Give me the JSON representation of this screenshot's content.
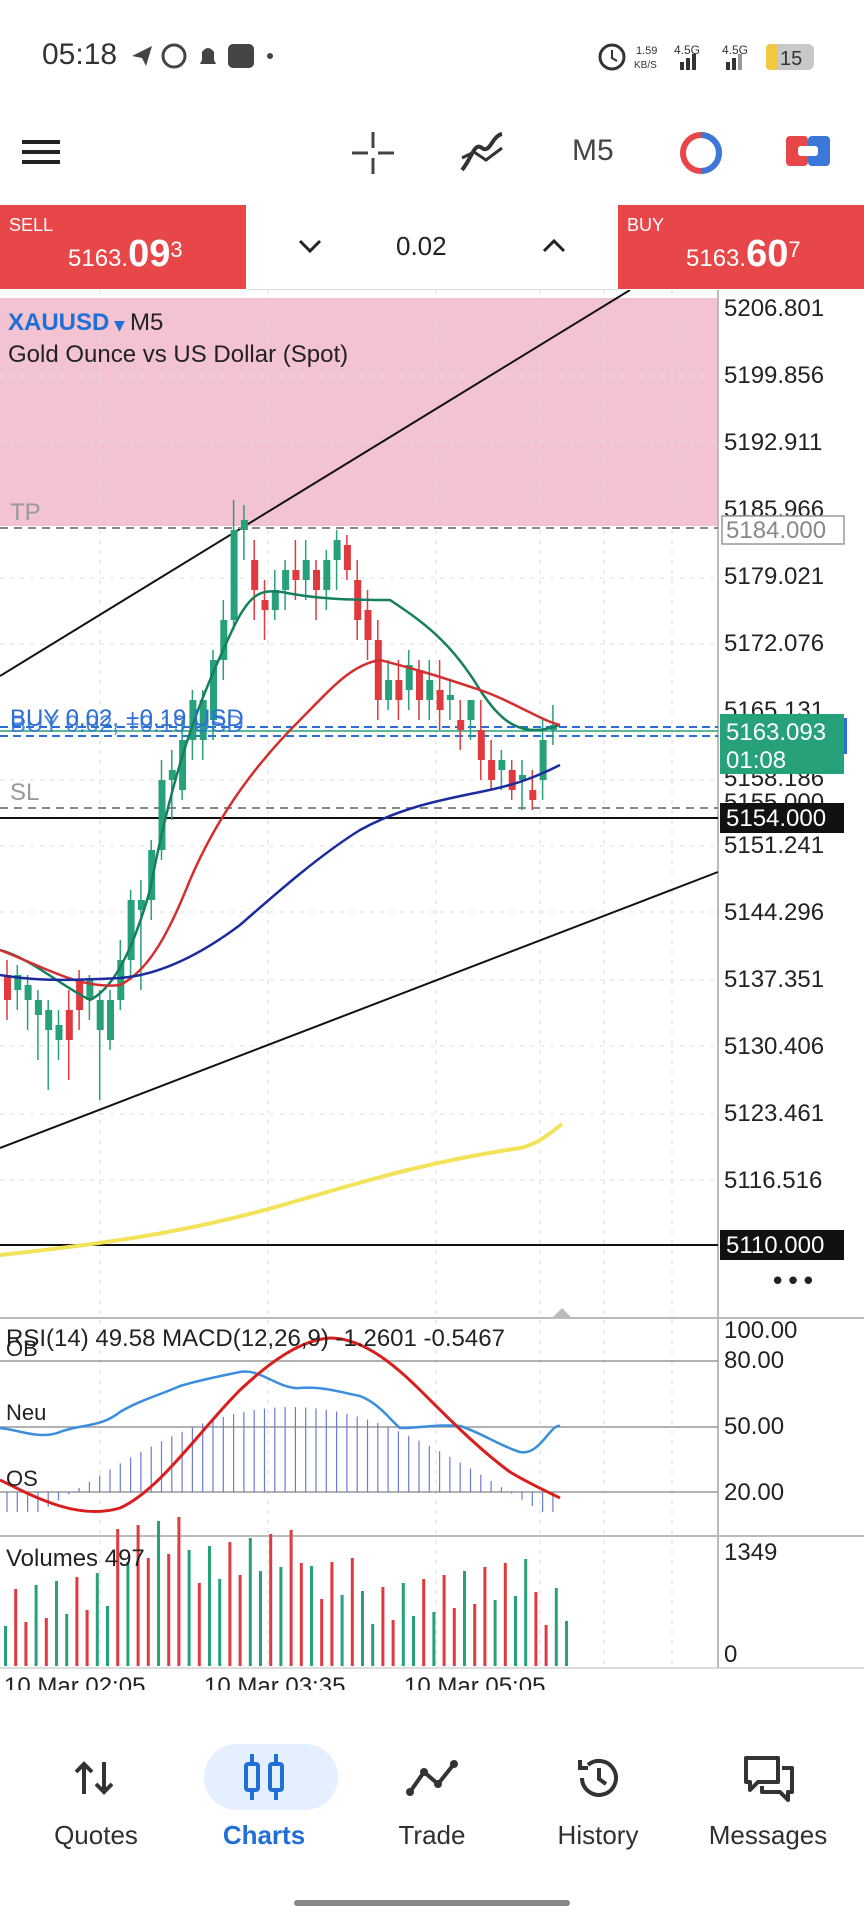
{
  "status_bar": {
    "time": "05:18",
    "net_speed_top": "1.59",
    "net_speed_bottom": "KB/S",
    "sig1": "4.5G",
    "sig2": "4.5G",
    "battery": "15"
  },
  "toolbar": {
    "timeframe": "M5",
    "icons": [
      "menu-icon",
      "crosshair-icon",
      "indicators-icon",
      "one-click-trading-icon",
      "trade-panel-icon"
    ]
  },
  "trade_panel": {
    "sell_label": "SELL",
    "sell_price_main": "5163.",
    "sell_price_big": "09",
    "sell_price_sup": "3",
    "buy_label": "BUY",
    "buy_price_main": "5163.",
    "buy_price_big": "60",
    "buy_price_sup": "7",
    "lot": "0.02"
  },
  "chart": {
    "symbol": "XAUUSD",
    "timeframe": "M5",
    "description": "Gold Ounce vs US Dollar (Spot)",
    "tp_label": "TP",
    "sl_label": "SL",
    "position_label": "BUY 0.02, +0.19 USD",
    "price_labels": [
      "5206.801",
      "5199.856",
      "5192.911",
      "5185.966",
      "5179.021",
      "5172.076",
      "5165.131",
      "5158.186",
      "5151.241",
      "5144.296",
      "5137.351",
      "5130.406",
      "5123.461",
      "5116.516"
    ],
    "tp_value": "5184.000",
    "sl_value": "5154.000",
    "current_price": "5163.093",
    "countdown": "01:08",
    "hline_value": "5110.000",
    "overlapped_label": "5155.000",
    "more": "•••"
  },
  "indicator": {
    "label": "RSI(14) 49.58 MACD(12,26,9) -1.2601 -0.5467",
    "ob": "OB",
    "neu": "Neu",
    "os": "OS",
    "levels": [
      "100.00",
      "80.00",
      "50.00",
      "20.00"
    ]
  },
  "volumes": {
    "label": "Volumes 497",
    "max": "1349",
    "min": "0"
  },
  "time_axis": [
    "10 Mar 02:05",
    "10 Mar 03:35",
    "10 Mar 05:05"
  ],
  "nav": {
    "items": [
      {
        "label": "Quotes"
      },
      {
        "label": "Charts"
      },
      {
        "label": "Trade"
      },
      {
        "label": "History"
      },
      {
        "label": "Messages"
      }
    ]
  },
  "colors": {
    "sell_buy_bg": "#e8474a",
    "bull": "#26a17a",
    "bear": "#e0393e",
    "tp_zone": "#f2c0d0",
    "accent": "#1f6fd6"
  }
}
